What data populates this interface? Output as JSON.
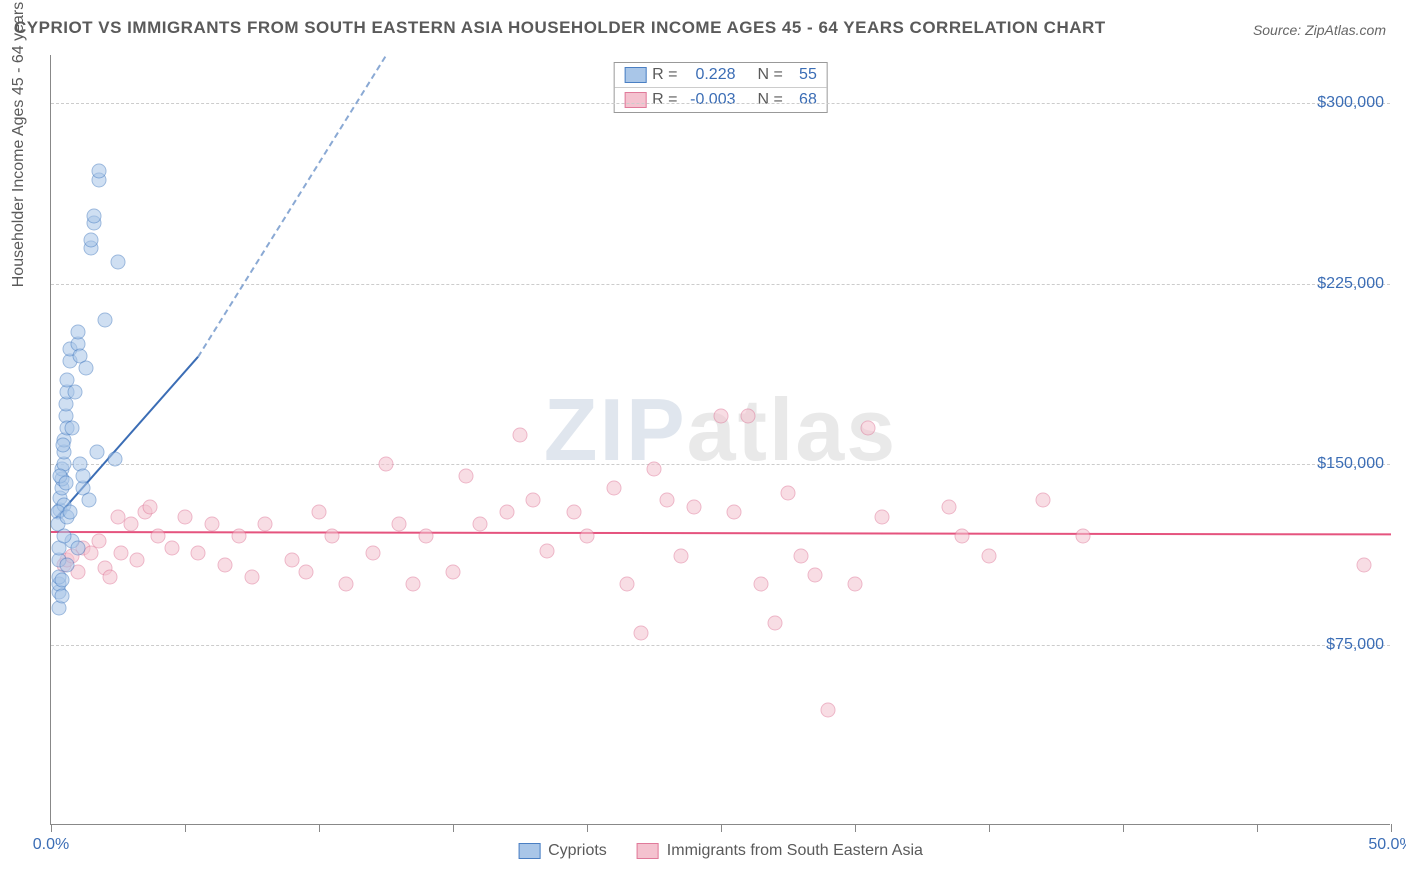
{
  "title": "CYPRIOT VS IMMIGRANTS FROM SOUTH EASTERN ASIA HOUSEHOLDER INCOME AGES 45 - 64 YEARS CORRELATION CHART",
  "source": "Source: ZipAtlas.com",
  "watermark_a": "ZIP",
  "watermark_b": "atlas",
  "y_axis_label": "Householder Income Ages 45 - 64 years",
  "chart": {
    "type": "scatter",
    "xlim": [
      0,
      50
    ],
    "ylim": [
      0,
      320000
    ],
    "x_ticks": [
      0,
      5,
      10,
      15,
      20,
      25,
      30,
      35,
      40,
      45,
      50
    ],
    "x_tick_labels": {
      "0": "0.0%",
      "50": "50.0%"
    },
    "y_gridlines": [
      75000,
      150000,
      225000,
      300000
    ],
    "y_tick_labels": {
      "75000": "$75,000",
      "150000": "$150,000",
      "225000": "$225,000",
      "300000": "$300,000"
    },
    "background_color": "#ffffff",
    "grid_color": "#cccccc",
    "axis_color": "#888888",
    "point_radius": 7.5,
    "tick_label_color": "#3b6db5"
  },
  "series": {
    "cypriots": {
      "label": "Cypriots",
      "fill": "#a9c6e8",
      "stroke": "#4a7fc3",
      "fill_opacity": 0.55,
      "regression": {
        "color_solid": "#3b6db5",
        "color_dash": "#8aa9d4",
        "x1": 0.2,
        "y1": 128000,
        "x2": 5.5,
        "y2": 195000,
        "dash_x2": 12.5,
        "dash_y2": 320000
      },
      "r_label": "R =",
      "r_value": "0.228",
      "n_label": "N =",
      "n_value": "55",
      "points": [
        [
          0.3,
          97000
        ],
        [
          0.3,
          100000
        ],
        [
          0.3,
          103000
        ],
        [
          0.3,
          90000
        ],
        [
          0.3,
          110000
        ],
        [
          0.35,
          131000
        ],
        [
          0.35,
          136000
        ],
        [
          0.4,
          140000
        ],
        [
          0.4,
          144000
        ],
        [
          0.4,
          148000
        ],
        [
          0.5,
          133000
        ],
        [
          0.5,
          150000
        ],
        [
          0.5,
          155000
        ],
        [
          0.5,
          160000
        ],
        [
          0.55,
          170000
        ],
        [
          0.55,
          175000
        ],
        [
          0.6,
          165000
        ],
        [
          0.6,
          180000
        ],
        [
          0.6,
          185000
        ],
        [
          0.7,
          193000
        ],
        [
          0.7,
          198000
        ],
        [
          0.8,
          165000
        ],
        [
          0.9,
          180000
        ],
        [
          1.0,
          200000
        ],
        [
          1.0,
          205000
        ],
        [
          1.1,
          195000
        ],
        [
          1.1,
          150000
        ],
        [
          1.2,
          140000
        ],
        [
          1.2,
          145000
        ],
        [
          1.3,
          190000
        ],
        [
          1.4,
          135000
        ],
        [
          1.5,
          240000
        ],
        [
          1.5,
          243000
        ],
        [
          1.6,
          250000
        ],
        [
          1.6,
          253000
        ],
        [
          1.8,
          268000
        ],
        [
          1.8,
          272000
        ],
        [
          2.0,
          210000
        ],
        [
          2.4,
          152000
        ],
        [
          2.5,
          234000
        ],
        [
          0.25,
          130000
        ],
        [
          0.25,
          125000
        ],
        [
          0.35,
          145000
        ],
        [
          0.45,
          158000
        ],
        [
          0.55,
          142000
        ],
        [
          0.6,
          128000
        ],
        [
          0.7,
          130000
        ],
        [
          0.8,
          118000
        ],
        [
          1.0,
          115000
        ],
        [
          1.7,
          155000
        ],
        [
          0.4,
          95000
        ],
        [
          0.4,
          102000
        ],
        [
          0.6,
          108000
        ],
        [
          0.3,
          115000
        ],
        [
          0.5,
          120000
        ]
      ]
    },
    "immigrants": {
      "label": "Immigrants from South Eastern Asia",
      "fill": "#f4c2cf",
      "stroke": "#e07a9a",
      "fill_opacity": 0.55,
      "regression": {
        "color_solid": "#e5537e",
        "x1": 0,
        "y1": 122000,
        "x2": 50,
        "y2": 121000
      },
      "r_label": "R =",
      "r_value": "-0.003",
      "n_label": "N =",
      "n_value": "68",
      "points": [
        [
          0.5,
          108000
        ],
        [
          0.6,
          110000
        ],
        [
          0.8,
          112000
        ],
        [
          1.0,
          105000
        ],
        [
          1.2,
          115000
        ],
        [
          1.5,
          113000
        ],
        [
          1.8,
          118000
        ],
        [
          2.0,
          107000
        ],
        [
          2.2,
          103000
        ],
        [
          2.5,
          128000
        ],
        [
          2.6,
          113000
        ],
        [
          3.0,
          125000
        ],
        [
          3.2,
          110000
        ],
        [
          3.5,
          130000
        ],
        [
          3.7,
          132000
        ],
        [
          4.0,
          120000
        ],
        [
          4.5,
          115000
        ],
        [
          5.0,
          128000
        ],
        [
          5.5,
          113000
        ],
        [
          6.0,
          125000
        ],
        [
          6.5,
          108000
        ],
        [
          7.0,
          120000
        ],
        [
          7.5,
          103000
        ],
        [
          8.0,
          125000
        ],
        [
          9.0,
          110000
        ],
        [
          9.5,
          105000
        ],
        [
          10.0,
          130000
        ],
        [
          10.5,
          120000
        ],
        [
          11.0,
          100000
        ],
        [
          12.0,
          113000
        ],
        [
          12.5,
          150000
        ],
        [
          13.0,
          125000
        ],
        [
          13.5,
          100000
        ],
        [
          14.0,
          120000
        ],
        [
          15.0,
          105000
        ],
        [
          15.5,
          145000
        ],
        [
          16.0,
          125000
        ],
        [
          17.0,
          130000
        ],
        [
          17.5,
          162000
        ],
        [
          18.0,
          135000
        ],
        [
          18.5,
          114000
        ],
        [
          19.5,
          130000
        ],
        [
          20.0,
          120000
        ],
        [
          21.0,
          140000
        ],
        [
          21.5,
          100000
        ],
        [
          22.0,
          80000
        ],
        [
          22.5,
          148000
        ],
        [
          23.0,
          135000
        ],
        [
          23.5,
          112000
        ],
        [
          24.0,
          132000
        ],
        [
          25.0,
          170000
        ],
        [
          25.5,
          130000
        ],
        [
          26.0,
          170000
        ],
        [
          26.5,
          100000
        ],
        [
          27.0,
          84000
        ],
        [
          27.5,
          138000
        ],
        [
          28.0,
          112000
        ],
        [
          28.5,
          104000
        ],
        [
          29.0,
          48000
        ],
        [
          30.0,
          100000
        ],
        [
          30.5,
          165000
        ],
        [
          31.0,
          128000
        ],
        [
          33.5,
          132000
        ],
        [
          34.0,
          120000
        ],
        [
          35.0,
          112000
        ],
        [
          37.0,
          135000
        ],
        [
          38.5,
          120000
        ],
        [
          49.0,
          108000
        ]
      ]
    }
  },
  "legend": {
    "item1": "Cypriots",
    "item2": "Immigrants from South Eastern Asia"
  }
}
